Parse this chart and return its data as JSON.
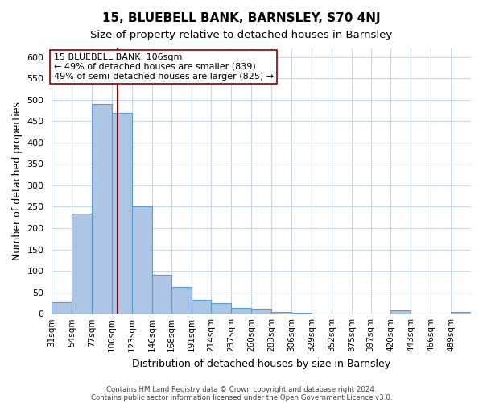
{
  "title1": "15, BLUEBELL BANK, BARNSLEY, S70 4NJ",
  "title2": "Size of property relative to detached houses in Barnsley",
  "xlabel": "Distribution of detached houses by size in Barnsley",
  "ylabel": "Number of detached properties",
  "bar_values": [
    27,
    234,
    490,
    470,
    250,
    90,
    62,
    33,
    24,
    13,
    11,
    4,
    2,
    1,
    1,
    0,
    0,
    7,
    0,
    0,
    5
  ],
  "bar_labels": [
    "31sqm",
    "54sqm",
    "77sqm",
    "100sqm",
    "123sqm",
    "146sqm",
    "168sqm",
    "191sqm",
    "214sqm",
    "237sqm",
    "260sqm",
    "283sqm",
    "306sqm",
    "329sqm",
    "352sqm",
    "375sqm",
    "397sqm",
    "420sqm",
    "443sqm",
    "466sqm",
    "489sqm"
  ],
  "bar_edges": [
    31,
    54,
    77,
    100,
    123,
    146,
    168,
    191,
    214,
    237,
    260,
    283,
    306,
    329,
    352,
    375,
    397,
    420,
    443,
    466,
    489,
    512
  ],
  "bar_color": "#adc6e5",
  "bar_edge_color": "#5b9bd5",
  "property_size": 106,
  "vline_color": "#8b0000",
  "ylim": [
    0,
    620
  ],
  "yticks": [
    0,
    50,
    100,
    150,
    200,
    250,
    300,
    350,
    400,
    450,
    500,
    550,
    600
  ],
  "annotation_box_color": "#ffffff",
  "annotation_border_color": "#8b0000",
  "annotation_line1": "15 BLUEBELL BANK: 106sqm",
  "annotation_line2": "← 49% of detached houses are smaller (839)",
  "annotation_line3": "49% of semi-detached houses are larger (825) →",
  "footer1": "Contains HM Land Registry data © Crown copyright and database right 2024.",
  "footer2": "Contains public sector information licensed under the Open Government Licence v3.0.",
  "background_color": "#ffffff",
  "grid_color": "#c8d8ea"
}
